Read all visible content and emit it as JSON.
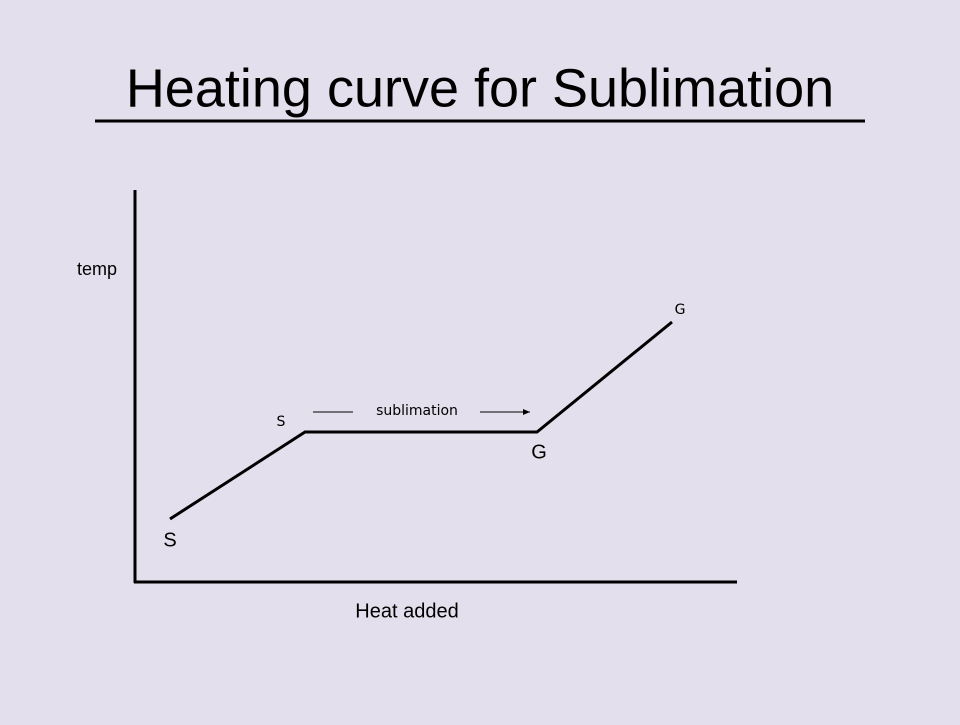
{
  "title": "Heating curve for Sublimation",
  "axes": {
    "y_label": "temp",
    "x_label": "Heat added"
  },
  "phase_labels": {
    "solid_start": "S",
    "solid_end": "S",
    "gas_start": "G",
    "gas_end": "G"
  },
  "transition_label": "sublimation"
}
